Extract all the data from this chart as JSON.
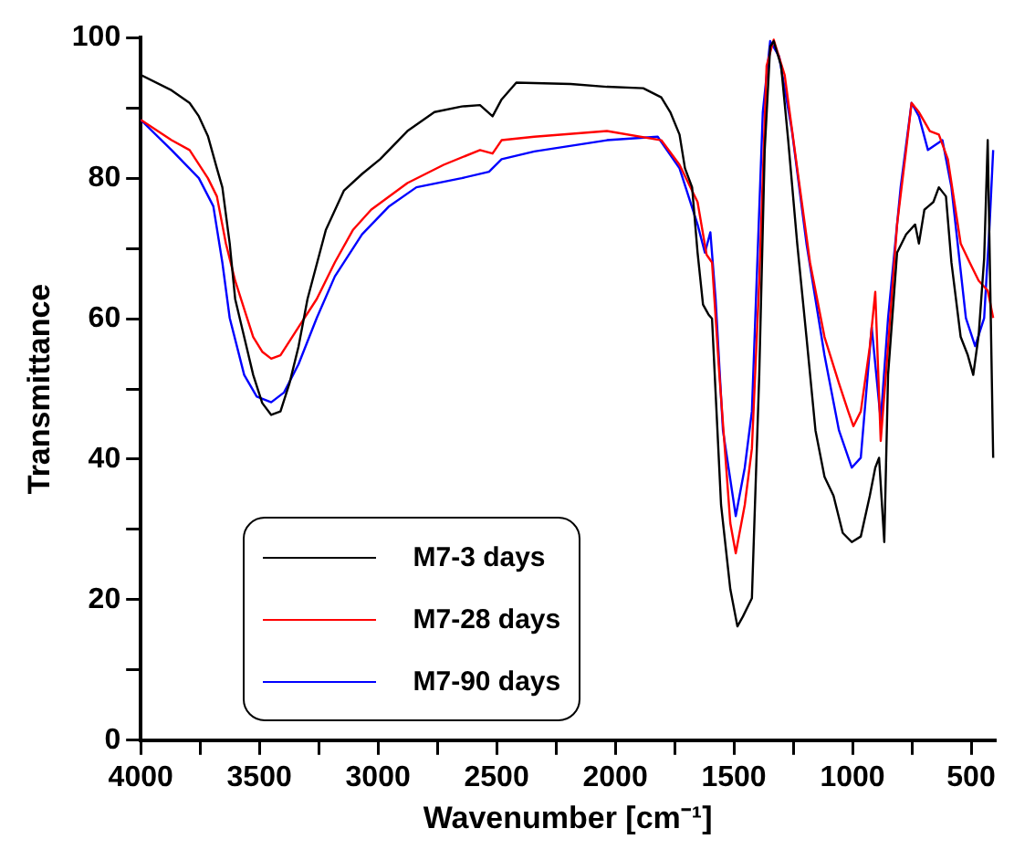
{
  "chart_data": {
    "type": "line",
    "xlabel": "Wavenumber [cm⁻¹]",
    "ylabel": "Transmittance",
    "xlim": [
      4000,
      400
    ],
    "xticks": [
      4000,
      {
        "value": 3750,
        "label": null
      },
      3500,
      {
        "value": 3250,
        "label": null
      },
      3000,
      {
        "value": 2750,
        "label": null
      },
      2500,
      {
        "value": 2250,
        "label": null
      },
      2000,
      {
        "value": 1750,
        "label": null
      },
      1500,
      {
        "value": 1250,
        "label": null
      },
      1000,
      {
        "value": 750,
        "label": null
      },
      500
    ],
    "ylim": [
      0,
      100
    ],
    "yticks": [
      0,
      {
        "value": 10,
        "label": null
      },
      20,
      {
        "value": 30,
        "label": null
      },
      40,
      {
        "value": 50,
        "label": null
      },
      60,
      {
        "value": 70,
        "label": null
      },
      80,
      {
        "value": 90,
        "label": null
      },
      100
    ],
    "grid": false,
    "legend": "bottom left",
    "marker": "none",
    "line_style": "solid",
    "series": [
      {
        "name": "M7-3 days",
        "color": "#000000",
        "x": [
          4000,
          3870,
          3794,
          3755,
          3717,
          3679,
          3656,
          3625,
          3602,
          3564,
          3526,
          3488,
          3450,
          3411,
          3373,
          3335,
          3297,
          3220,
          3144,
          3067,
          2991,
          2876,
          2762,
          2647,
          2570,
          2517,
          2479,
          2417,
          2188,
          2035,
          1882,
          1806,
          1768,
          1729,
          1706,
          1676,
          1653,
          1630,
          1607,
          1592,
          1577,
          1554,
          1515,
          1485,
          1462,
          1424,
          1393,
          1370,
          1347,
          1332,
          1301,
          1271,
          1233,
          1194,
          1156,
          1118,
          1080,
          1041,
          1003,
          965,
          927,
          904,
          888,
          866,
          850,
          812,
          774,
          736,
          720,
          697,
          659,
          636,
          606,
          583,
          544,
          514,
          491,
          468,
          445,
          430,
          407
        ],
        "values": [
          94.7,
          92.5,
          90.7,
          88.8,
          86,
          81.4,
          78.7,
          70.7,
          62.8,
          57.4,
          52,
          48,
          46.3,
          46.8,
          50.8,
          56,
          62.8,
          72.6,
          78.2,
          80.6,
          82.7,
          86.7,
          89.4,
          90.2,
          90.4,
          88.8,
          91.2,
          93.6,
          93.4,
          93,
          92.8,
          91.5,
          89.4,
          86.2,
          81.4,
          78.7,
          69.4,
          62,
          60.6,
          60,
          49.5,
          33.5,
          21.5,
          16.2,
          17.6,
          20.2,
          52,
          84,
          98.7,
          99.5,
          96,
          85.4,
          70.7,
          57.4,
          44.1,
          37.5,
          34.8,
          29.5,
          28.2,
          29,
          34.8,
          38.8,
          40.2,
          28.2,
          52,
          69.4,
          72,
          73.4,
          70.7,
          75.5,
          76.6,
          78.7,
          77.4,
          68,
          57.4,
          54.8,
          52,
          57.7,
          68.6,
          85.4,
          40.2
        ]
      },
      {
        "name": "M7-28 days",
        "color": "#ff0000",
        "x": [
          4000,
          3870,
          3794,
          3717,
          3679,
          3641,
          3602,
          3564,
          3526,
          3488,
          3450,
          3411,
          3335,
          3258,
          3182,
          3106,
          3029,
          2876,
          2723,
          2570,
          2517,
          2479,
          2341,
          2035,
          1806,
          1729,
          1653,
          1615,
          1592,
          1561,
          1515,
          1492,
          1454,
          1424,
          1393,
          1362,
          1332,
          1286,
          1233,
          1179,
          1118,
          1057,
          1018,
          996,
          965,
          927,
          904,
          881,
          850,
          812,
          774,
          751,
          720,
          674,
          636,
          598,
          544,
          506,
          468,
          430,
          407
        ],
        "values": [
          88.3,
          85.4,
          84,
          80,
          77.4,
          70.7,
          65.4,
          61.4,
          57.4,
          55.3,
          54.3,
          54.8,
          58.8,
          62.8,
          68,
          72.6,
          75.5,
          79.3,
          81.9,
          84,
          83.5,
          85.4,
          85.9,
          86.7,
          85.4,
          81.9,
          76.6,
          69.1,
          68,
          52,
          30.9,
          26.6,
          33.5,
          41.5,
          65.4,
          96,
          99.7,
          94.7,
          81.4,
          68,
          57.4,
          50.8,
          46.8,
          44.7,
          46.8,
          56,
          63.8,
          42.6,
          56.1,
          73.4,
          84,
          90.7,
          89.4,
          86.7,
          86.2,
          82.7,
          70.7,
          68,
          65.4,
          64,
          60.1
        ]
      },
      {
        "name": "M7-90 days",
        "color": "#0000ff",
        "x": [
          4000,
          3870,
          3755,
          3694,
          3656,
          3625,
          3564,
          3511,
          3450,
          3396,
          3335,
          3258,
          3182,
          3067,
          2953,
          2838,
          2647,
          2532,
          2479,
          2341,
          2035,
          1821,
          1729,
          1653,
          1622,
          1599,
          1577,
          1546,
          1492,
          1454,
          1424,
          1378,
          1347,
          1309,
          1255,
          1194,
          1118,
          1057,
          1003,
          965,
          919,
          881,
          850,
          797,
          751,
          720,
          682,
          621,
          583,
          522,
          483,
          445,
          422,
          407
        ],
        "values": [
          88.3,
          84,
          80,
          76,
          68,
          60.1,
          52,
          48.9,
          48.1,
          49.5,
          53.5,
          60.1,
          66,
          72,
          76,
          78.7,
          80,
          80.9,
          82.7,
          83.8,
          85.4,
          85.9,
          81.4,
          73.4,
          69.4,
          72.3,
          62.8,
          44.1,
          31.9,
          38.8,
          46.8,
          89.4,
          99.5,
          97.3,
          86.7,
          70.7,
          54.8,
          44.1,
          38.8,
          40.2,
          58.8,
          45.5,
          60.1,
          78.7,
          90.7,
          88.8,
          84,
          85.4,
          78.7,
          60.1,
          56.1,
          60.1,
          73.4,
          84
        ]
      }
    ]
  }
}
